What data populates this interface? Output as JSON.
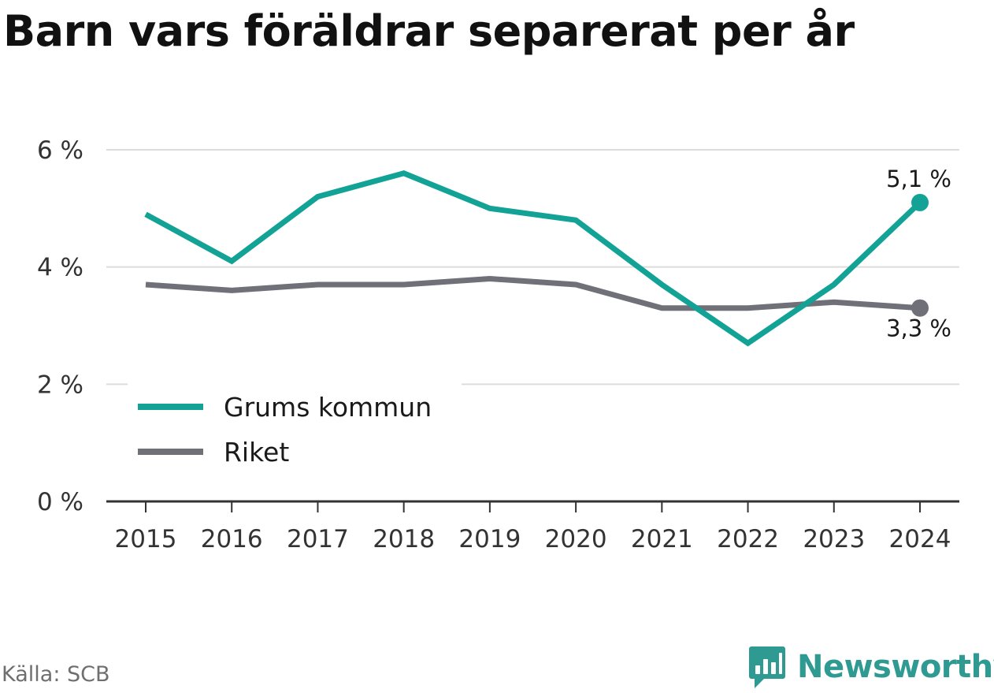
{
  "chart_data": {
    "type": "line",
    "title": "Barn vars föräldrar separerat per år",
    "x": [
      "2015",
      "2016",
      "2017",
      "2018",
      "2019",
      "2020",
      "2021",
      "2022",
      "2023",
      "2024"
    ],
    "series": [
      {
        "name": "Grums kommun",
        "color": "#13a296",
        "values": [
          4.9,
          4.1,
          5.2,
          5.6,
          5.0,
          4.8,
          3.7,
          2.7,
          3.7,
          5.1
        ],
        "end_label": "5,1 %"
      },
      {
        "name": "Riket",
        "color": "#707078",
        "values": [
          3.7,
          3.6,
          3.7,
          3.7,
          3.8,
          3.7,
          3.3,
          3.3,
          3.4,
          3.3
        ],
        "end_label": "3,3 %"
      }
    ],
    "y_ticks": [
      {
        "value": 0,
        "label": "0 %"
      },
      {
        "value": 2,
        "label": "2 %"
      },
      {
        "value": 4,
        "label": "4 %"
      },
      {
        "value": 6,
        "label": "6 %"
      }
    ],
    "ylim": [
      0,
      6
    ],
    "grid": true,
    "legend_position": "bottom-left"
  },
  "footer": {
    "source": "Källa: SCB",
    "brand": "Newsworthy",
    "brand_color": "#2e9a92"
  }
}
